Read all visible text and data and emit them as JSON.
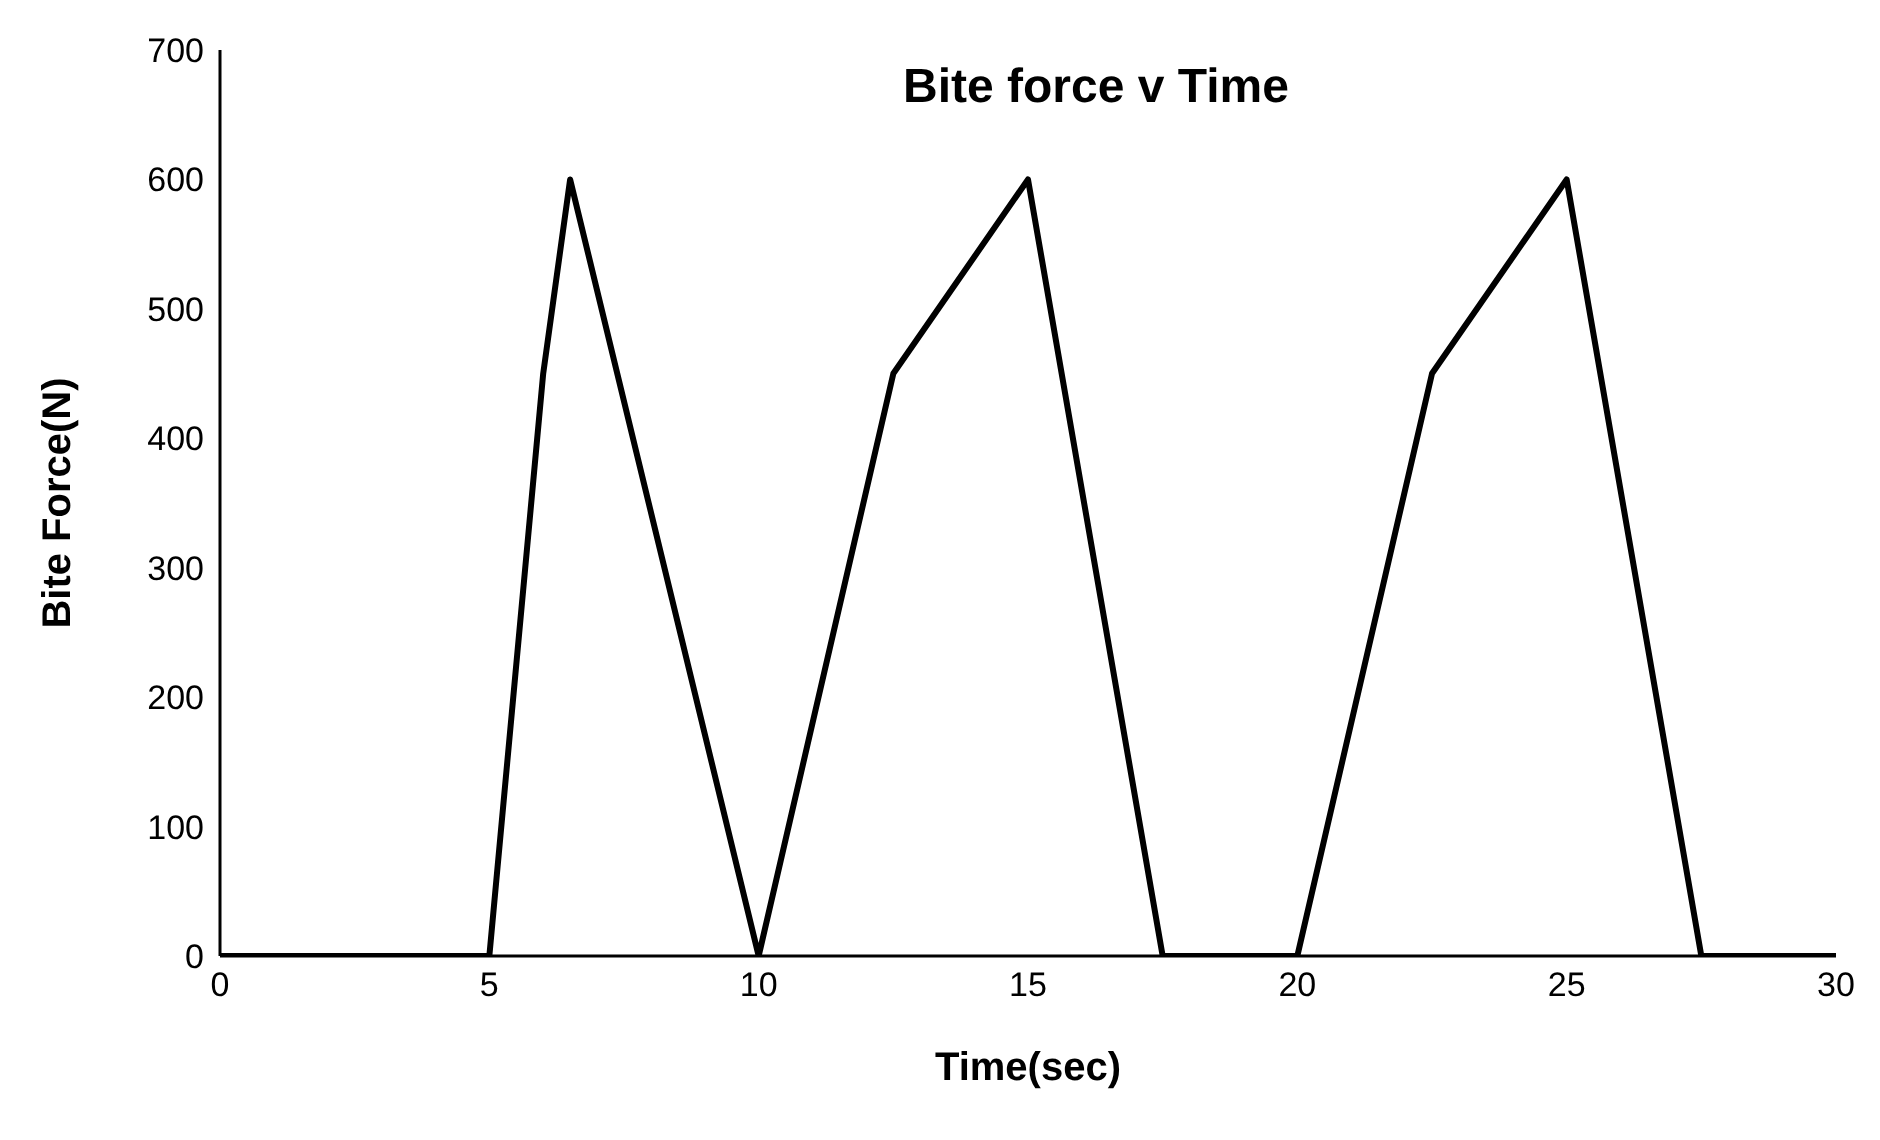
{
  "chart_data": {
    "type": "line",
    "title": "Bite force v Time",
    "xlabel": "Time(sec)",
    "ylabel": "Bite Force(N)",
    "x": [
      0,
      5,
      6,
      6.5,
      10,
      12.5,
      15,
      17.5,
      20,
      22.5,
      25,
      27.5,
      30
    ],
    "series": [
      {
        "color": "#000000",
        "values": [
          0,
          0,
          450,
          600,
          0,
          450,
          600,
          0,
          0,
          450,
          600,
          0,
          0
        ]
      }
    ],
    "xlim": [
      0,
      30
    ],
    "xticks": [
      0,
      5,
      10,
      15,
      20,
      25,
      30
    ],
    "ylim": [
      0,
      700
    ],
    "yticks": [
      0,
      100,
      200,
      300,
      400,
      500,
      600,
      700
    ],
    "grid": false,
    "legend": false,
    "marker": "none",
    "line_style": "solid"
  }
}
